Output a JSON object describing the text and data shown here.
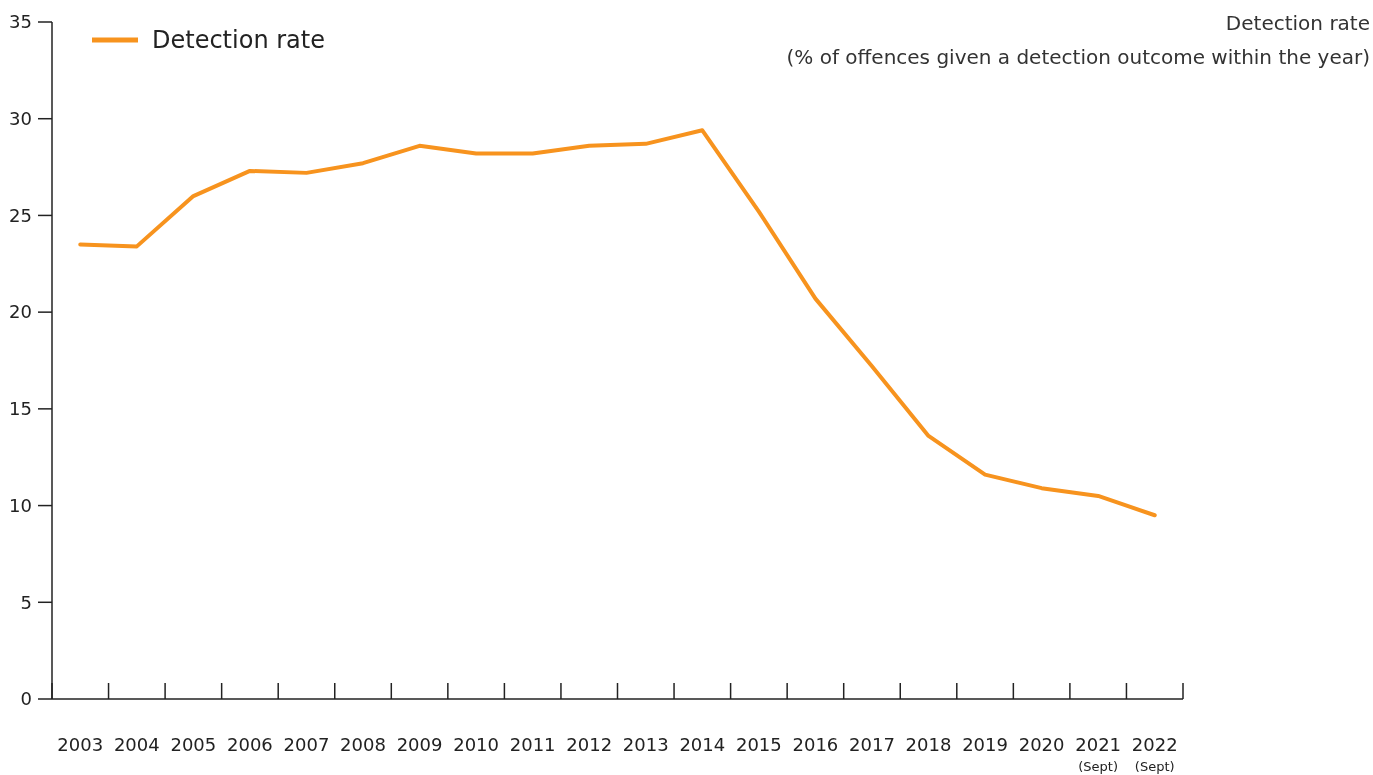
{
  "chart_data": {
    "type": "line",
    "ylabel": "Detection rate\n(% of offences given a detection outcome within the year)",
    "categories": [
      "2003",
      "2004",
      "2005",
      "2006",
      "2007",
      "2008",
      "2009",
      "2010",
      "2011",
      "2012",
      "2013",
      "2014",
      "2015",
      "2016",
      "2017",
      "2018",
      "2019",
      "2020",
      "2021\n(Sept)",
      "2022\n(Sept)"
    ],
    "series": [
      {
        "name": "Detection rate",
        "color": "#f7931e",
        "values": [
          23.5,
          23.4,
          26.0,
          27.3,
          27.2,
          27.7,
          28.6,
          28.2,
          28.2,
          28.6,
          28.7,
          29.4,
          25.2,
          20.7,
          17.2,
          13.6,
          11.6,
          10.9,
          10.5,
          9.5
        ]
      }
    ],
    "ylim": [
      0,
      35
    ],
    "yticks": [
      0,
      5,
      10,
      15,
      20,
      25,
      30,
      35
    ],
    "grid": false,
    "legend": "top left",
    "marker": "none",
    "line_style": "solid"
  }
}
